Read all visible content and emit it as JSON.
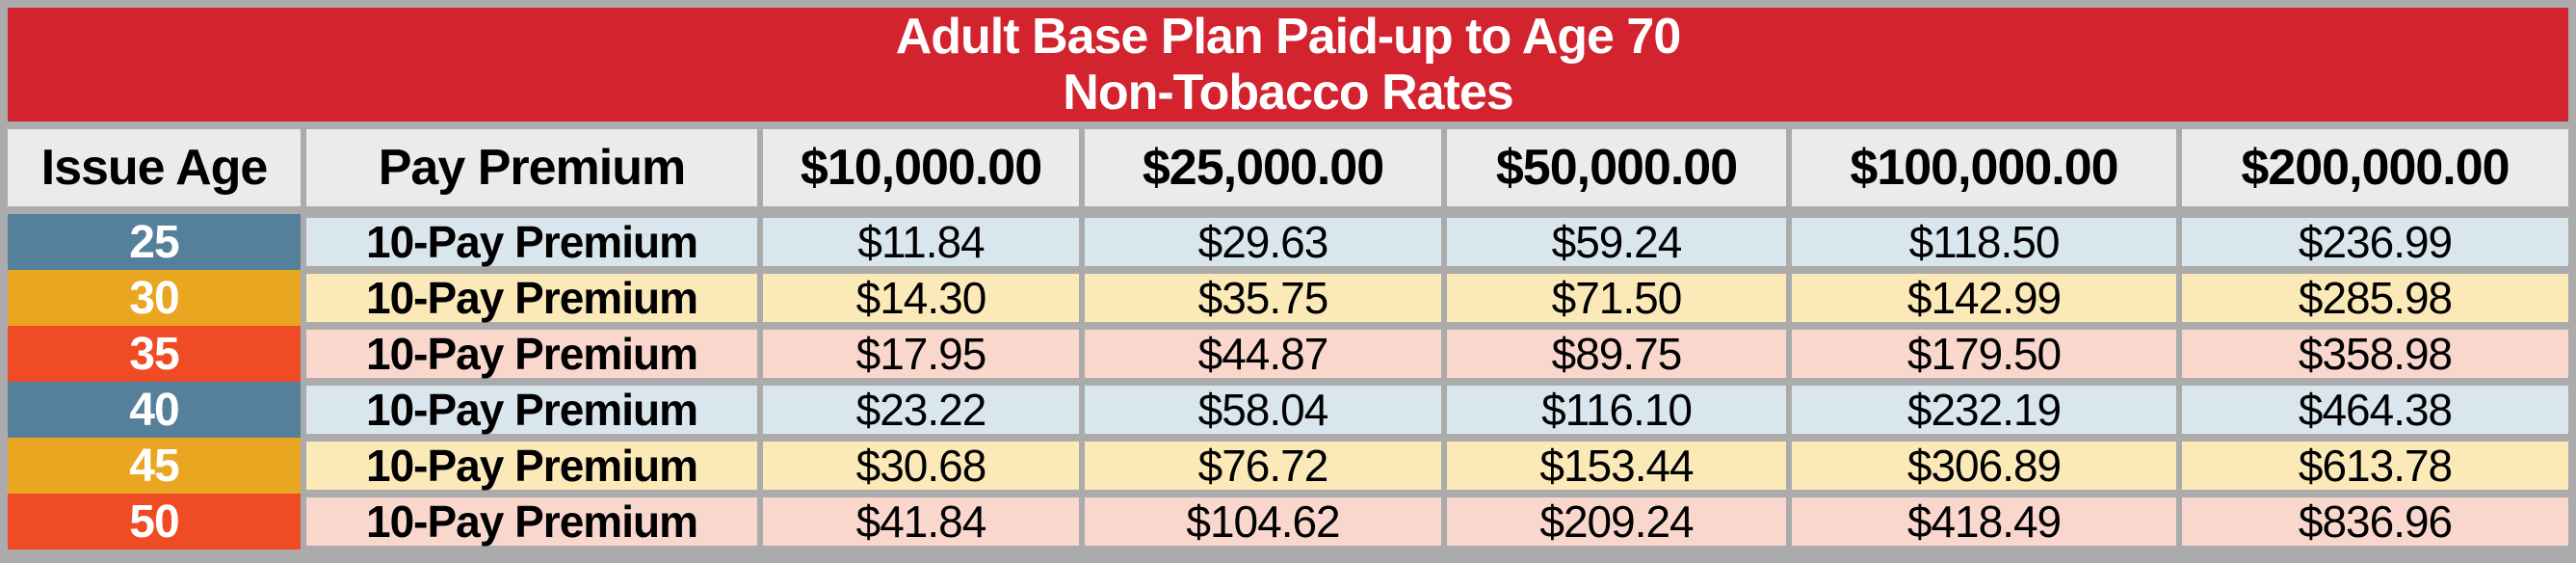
{
  "table": {
    "title_line1": "Adult Base Plan Paid-up to Age 70",
    "title_line2": "Non-Tobacco Rates",
    "columns": [
      "Issue Age",
      "Pay Premium",
      "$10,000.00",
      "$25,000.00",
      "$50,000.00",
      "$100,000.00",
      "$200,000.00"
    ],
    "rows": [
      {
        "issue_age": "25",
        "pay_premium": "10-Pay Premium",
        "values": [
          "$11.84",
          "$29.63",
          "$59.24",
          "$118.50",
          "$236.99"
        ],
        "theme": "blue"
      },
      {
        "issue_age": "30",
        "pay_premium": "10-Pay Premium",
        "values": [
          "$14.30",
          "$35.75",
          "$71.50",
          "$142.99",
          "$285.98"
        ],
        "theme": "yellow"
      },
      {
        "issue_age": "35",
        "pay_premium": "10-Pay Premium",
        "values": [
          "$17.95",
          "$44.87",
          "$89.75",
          "$179.50",
          "$358.98"
        ],
        "theme": "pink"
      },
      {
        "issue_age": "40",
        "pay_premium": "10-Pay Premium",
        "values": [
          "$23.22",
          "$58.04",
          "$116.10",
          "$232.19",
          "$464.38"
        ],
        "theme": "blue"
      },
      {
        "issue_age": "45",
        "pay_premium": "10-Pay Premium",
        "values": [
          "$30.68",
          "$76.72",
          "$153.44",
          "$306.89",
          "$613.78"
        ],
        "theme": "yellow"
      },
      {
        "issue_age": "50",
        "pay_premium": "10-Pay Premium",
        "values": [
          "$41.84",
          "$104.62",
          "$209.24",
          "$418.49",
          "$836.96"
        ],
        "theme": "pink"
      }
    ],
    "colors": {
      "banner_red": "#D2232E",
      "header_bg": "#EBEBEB",
      "border_gray": "#ABABAB",
      "age_blue": "#54809B",
      "age_amber": "#E9A621",
      "age_orange": "#EF4C26",
      "row_blue": "#DAE6EE",
      "row_yellow": "#FCE9B8",
      "row_pink": "#F9D7CD",
      "title_text": "#FFFFFF",
      "body_text": "#000000"
    }
  },
  "chart_data": {
    "type": "table",
    "title": "Adult Base Plan Paid-up to Age 70 — Non-Tobacco Rates",
    "columns": [
      "Issue Age",
      "Pay Premium",
      "$10,000.00",
      "$25,000.00",
      "$50,000.00",
      "$100,000.00",
      "$200,000.00"
    ],
    "rows": [
      [
        "25",
        "10-Pay Premium",
        "$11.84",
        "$29.63",
        "$59.24",
        "$118.50",
        "$236.99"
      ],
      [
        "30",
        "10-Pay Premium",
        "$14.30",
        "$35.75",
        "$71.50",
        "$142.99",
        "$285.98"
      ],
      [
        "35",
        "10-Pay Premium",
        "$17.95",
        "$44.87",
        "$89.75",
        "$179.50",
        "$358.98"
      ],
      [
        "40",
        "10-Pay Premium",
        "$23.22",
        "$58.04",
        "$116.10",
        "$232.19",
        "$464.38"
      ],
      [
        "45",
        "10-Pay Premium",
        "$30.68",
        "$76.72",
        "$153.44",
        "$306.89",
        "$613.78"
      ],
      [
        "50",
        "10-Pay Premium",
        "$41.84",
        "$104.62",
        "$209.24",
        "$418.49",
        "$836.96"
      ]
    ]
  }
}
